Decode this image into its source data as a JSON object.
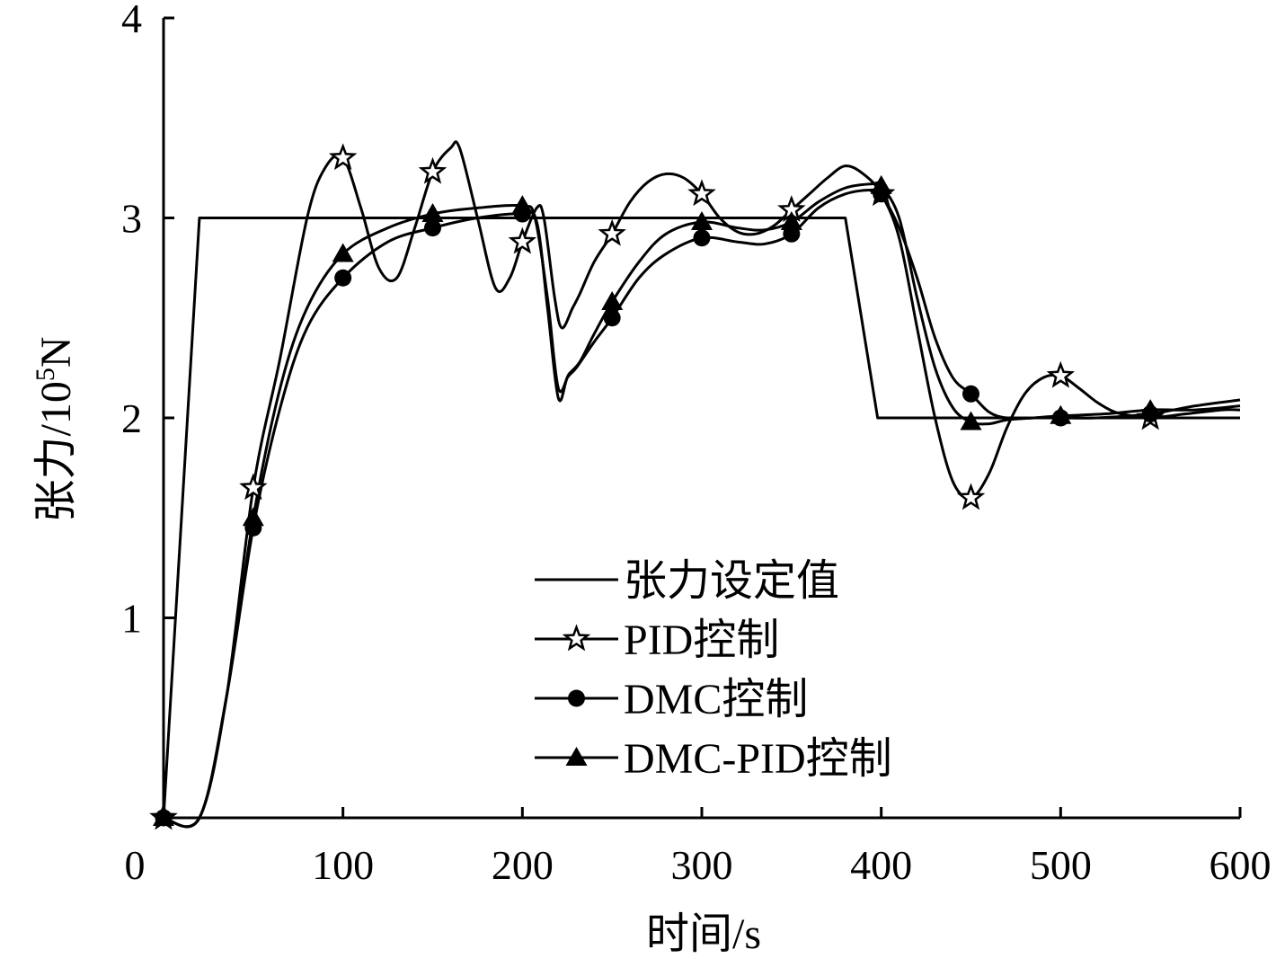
{
  "chart_data": {
    "type": "line",
    "xlabel": "时间/s",
    "ylabel": "张力/10",
    "ylabel_sup": "5",
    "ylabel_unit": "N",
    "xlim": [
      0,
      600
    ],
    "ylim": [
      0,
      4
    ],
    "x_ticks": [
      "0",
      "100",
      "200",
      "300",
      "400",
      "500",
      "600"
    ],
    "y_ticks": [
      "1",
      "2",
      "3",
      "4"
    ],
    "grid": false,
    "legend_position": "center-bottom",
    "series": [
      {
        "name": "张力设定值",
        "marker": "none",
        "points": [
          [
            0,
            0
          ],
          [
            20,
            3.0
          ],
          [
            380,
            3.0
          ],
          [
            398,
            2.0
          ],
          [
            600,
            2.0
          ]
        ]
      },
      {
        "name": "PID控制",
        "marker": "star",
        "marker_x": [
          0,
          50,
          100,
          150,
          200,
          250,
          300,
          350,
          400,
          450,
          500,
          550
        ],
        "points": [
          [
            0,
            0
          ],
          [
            20,
            0
          ],
          [
            35,
            0.6
          ],
          [
            50,
            1.65
          ],
          [
            65,
            2.3
          ],
          [
            80,
            3.0
          ],
          [
            90,
            3.25
          ],
          [
            100,
            3.3
          ],
          [
            110,
            3.05
          ],
          [
            120,
            2.75
          ],
          [
            130,
            2.7
          ],
          [
            140,
            2.95
          ],
          [
            150,
            3.23
          ],
          [
            160,
            3.35
          ],
          [
            165,
            3.35
          ],
          [
            175,
            3.0
          ],
          [
            185,
            2.65
          ],
          [
            193,
            2.7
          ],
          [
            200,
            2.88
          ],
          [
            208,
            3.05
          ],
          [
            212,
            3.0
          ],
          [
            218,
            2.6
          ],
          [
            222,
            2.45
          ],
          [
            228,
            2.55
          ],
          [
            232,
            2.62
          ],
          [
            240,
            2.78
          ],
          [
            250,
            2.92
          ],
          [
            260,
            3.08
          ],
          [
            270,
            3.18
          ],
          [
            280,
            3.22
          ],
          [
            290,
            3.2
          ],
          [
            300,
            3.12
          ],
          [
            310,
            3.0
          ],
          [
            320,
            2.93
          ],
          [
            330,
            2.92
          ],
          [
            340,
            2.96
          ],
          [
            350,
            3.04
          ],
          [
            360,
            3.12
          ],
          [
            370,
            3.2
          ],
          [
            380,
            3.26
          ],
          [
            390,
            3.22
          ],
          [
            400,
            3.12
          ],
          [
            410,
            2.9
          ],
          [
            420,
            2.45
          ],
          [
            430,
            2.0
          ],
          [
            440,
            1.68
          ],
          [
            450,
            1.6
          ],
          [
            460,
            1.72
          ],
          [
            470,
            1.95
          ],
          [
            480,
            2.12
          ],
          [
            490,
            2.2
          ],
          [
            500,
            2.21
          ],
          [
            510,
            2.15
          ],
          [
            520,
            2.08
          ],
          [
            530,
            2.03
          ],
          [
            540,
            2.01
          ],
          [
            550,
            2.0
          ],
          [
            570,
            2.02
          ],
          [
            590,
            2.04
          ],
          [
            600,
            2.04
          ]
        ]
      },
      {
        "name": "DMC控制",
        "marker": "circle",
        "marker_x": [
          0,
          50,
          100,
          150,
          200,
          250,
          300,
          350,
          400,
          450,
          500,
          550
        ],
        "points": [
          [
            0,
            0
          ],
          [
            20,
            0
          ],
          [
            35,
            0.6
          ],
          [
            50,
            1.45
          ],
          [
            65,
            2.05
          ],
          [
            80,
            2.45
          ],
          [
            100,
            2.7
          ],
          [
            125,
            2.88
          ],
          [
            150,
            2.95
          ],
          [
            175,
            3.0
          ],
          [
            200,
            3.02
          ],
          [
            208,
            2.98
          ],
          [
            214,
            2.55
          ],
          [
            220,
            2.1
          ],
          [
            225,
            2.2
          ],
          [
            230,
            2.25
          ],
          [
            240,
            2.38
          ],
          [
            250,
            2.5
          ],
          [
            265,
            2.7
          ],
          [
            280,
            2.82
          ],
          [
            300,
            2.9
          ],
          [
            320,
            2.88
          ],
          [
            335,
            2.87
          ],
          [
            350,
            2.92
          ],
          [
            365,
            3.05
          ],
          [
            380,
            3.12
          ],
          [
            395,
            3.14
          ],
          [
            400,
            3.12
          ],
          [
            410,
            2.95
          ],
          [
            420,
            2.7
          ],
          [
            430,
            2.4
          ],
          [
            440,
            2.2
          ],
          [
            450,
            2.12
          ],
          [
            460,
            2.03
          ],
          [
            470,
            2.0
          ],
          [
            485,
            2.0
          ],
          [
            500,
            2.0
          ],
          [
            520,
            2.0
          ],
          [
            550,
            2.02
          ],
          [
            575,
            2.06
          ],
          [
            600,
            2.09
          ]
        ]
      },
      {
        "name": "DMC-PID控制",
        "marker": "triangle",
        "marker_x": [
          0,
          50,
          100,
          150,
          200,
          250,
          300,
          350,
          400,
          450,
          500,
          550
        ],
        "points": [
          [
            0,
            0
          ],
          [
            20,
            0
          ],
          [
            35,
            0.6
          ],
          [
            50,
            1.5
          ],
          [
            65,
            2.15
          ],
          [
            80,
            2.55
          ],
          [
            100,
            2.82
          ],
          [
            125,
            2.95
          ],
          [
            150,
            3.02
          ],
          [
            175,
            3.05
          ],
          [
            200,
            3.06
          ],
          [
            207,
            3.0
          ],
          [
            214,
            2.6
          ],
          [
            220,
            2.15
          ],
          [
            226,
            2.22
          ],
          [
            232,
            2.28
          ],
          [
            240,
            2.42
          ],
          [
            250,
            2.58
          ],
          [
            265,
            2.78
          ],
          [
            280,
            2.92
          ],
          [
            300,
            2.98
          ],
          [
            320,
            2.95
          ],
          [
            335,
            2.94
          ],
          [
            350,
            2.98
          ],
          [
            365,
            3.08
          ],
          [
            380,
            3.15
          ],
          [
            395,
            3.17
          ],
          [
            400,
            3.16
          ],
          [
            410,
            3.0
          ],
          [
            420,
            2.6
          ],
          [
            430,
            2.25
          ],
          [
            440,
            2.05
          ],
          [
            450,
            1.98
          ],
          [
            460,
            1.97
          ],
          [
            470,
            1.99
          ],
          [
            485,
            2.0
          ],
          [
            500,
            2.01
          ],
          [
            525,
            2.02
          ],
          [
            550,
            2.04
          ],
          [
            575,
            2.04
          ],
          [
            600,
            2.06
          ]
        ]
      }
    ]
  }
}
